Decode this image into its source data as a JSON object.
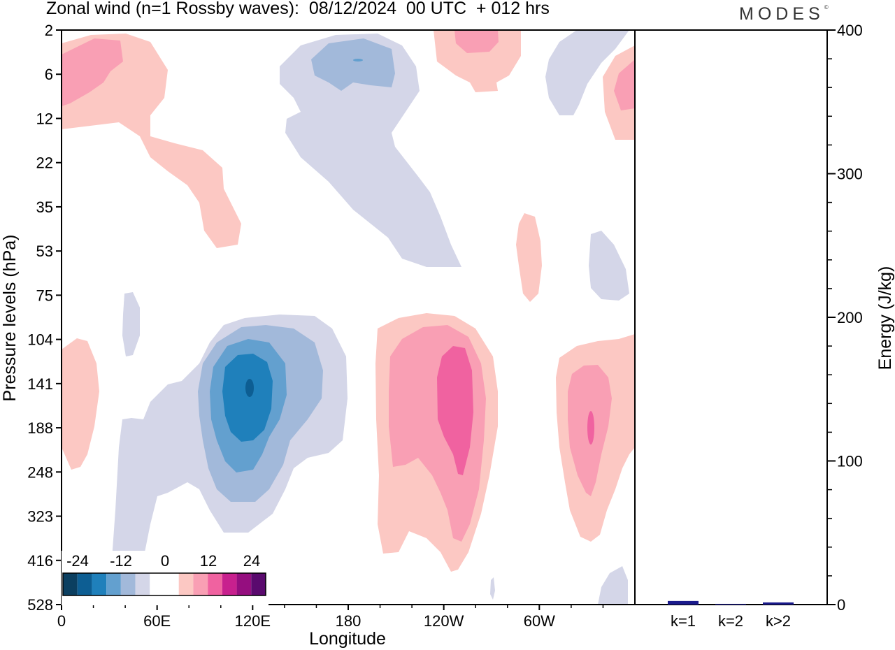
{
  "header": {
    "title": "Zonal wind (n=1 Rossby waves):  08/12/2024  00 UTC  + 012 hrs",
    "logo": "MODES",
    "logo_mark": "©"
  },
  "chart_data": [
    {
      "type": "heatmap",
      "xlabel": "Longitude",
      "ylabel": "Pressure levels (hPa)",
      "x_ticks": [
        "0",
        "60E",
        "120E",
        "180",
        "120W",
        "60W"
      ],
      "y_ticks": [
        "2",
        "6",
        "12",
        "22",
        "35",
        "53",
        "75",
        "104",
        "141",
        "188",
        "248",
        "323",
        "416",
        "528"
      ],
      "colorbar": {
        "labels": [
          "-24",
          "-12",
          "0",
          "12",
          "24"
        ],
        "colors": [
          "#0b3f60",
          "#0d5e93",
          "#1f80bb",
          "#63a0cf",
          "#a2b9da",
          "#d4d6e8",
          "#ffffff",
          "#ffffff",
          "#fcc8c3",
          "#f99fb4",
          "#f062a0",
          "#c8208e",
          "#950e7f",
          "#5a0a6e"
        ]
      },
      "contours": [
        {
          "name": "upper-left-positive",
          "level": 6,
          "color": "#fcc8c3"
        },
        {
          "name": "upper-left-positive-core",
          "level": 12,
          "color": "#f99fb4"
        },
        {
          "name": "upper-mid-negative",
          "level": -6,
          "color": "#d4d6e8"
        },
        {
          "name": "upper-mid-negative-core",
          "level": -12,
          "color": "#a2b9da"
        },
        {
          "name": "lower-negative",
          "level": -6,
          "color": "#d4d6e8"
        },
        {
          "name": "lower-negative-2",
          "level": -12,
          "color": "#a2b9da"
        },
        {
          "name": "lower-negative-3",
          "level": -18,
          "color": "#63a0cf"
        },
        {
          "name": "lower-negative-core",
          "level": -24,
          "color": "#1f80bb"
        },
        {
          "name": "lower-positive-center",
          "level": 6,
          "color": "#fcc8c3"
        },
        {
          "name": "lower-positive-center-2",
          "level": 12,
          "color": "#f99fb4"
        },
        {
          "name": "lower-positive-center-core",
          "level": 18,
          "color": "#f062a0"
        },
        {
          "name": "lower-positive-right",
          "level": 6,
          "color": "#fcc8c3"
        },
        {
          "name": "lower-positive-right-2",
          "level": 12,
          "color": "#f99fb4"
        },
        {
          "name": "lower-positive-right-core",
          "level": 18,
          "color": "#f062a0"
        }
      ]
    },
    {
      "type": "bar",
      "categories": [
        "k=1",
        "k=2",
        "k>2"
      ],
      "values": [
        2.5,
        0.5,
        1.5
      ],
      "ylabel": "Energy (J/kg)",
      "ylim": [
        0,
        400
      ],
      "y_ticks": [
        "0",
        "100",
        "200",
        "300",
        "400"
      ],
      "bar_colors": [
        "#1a1a8c",
        "#1a1a8c",
        "#1a1a8c"
      ]
    }
  ]
}
